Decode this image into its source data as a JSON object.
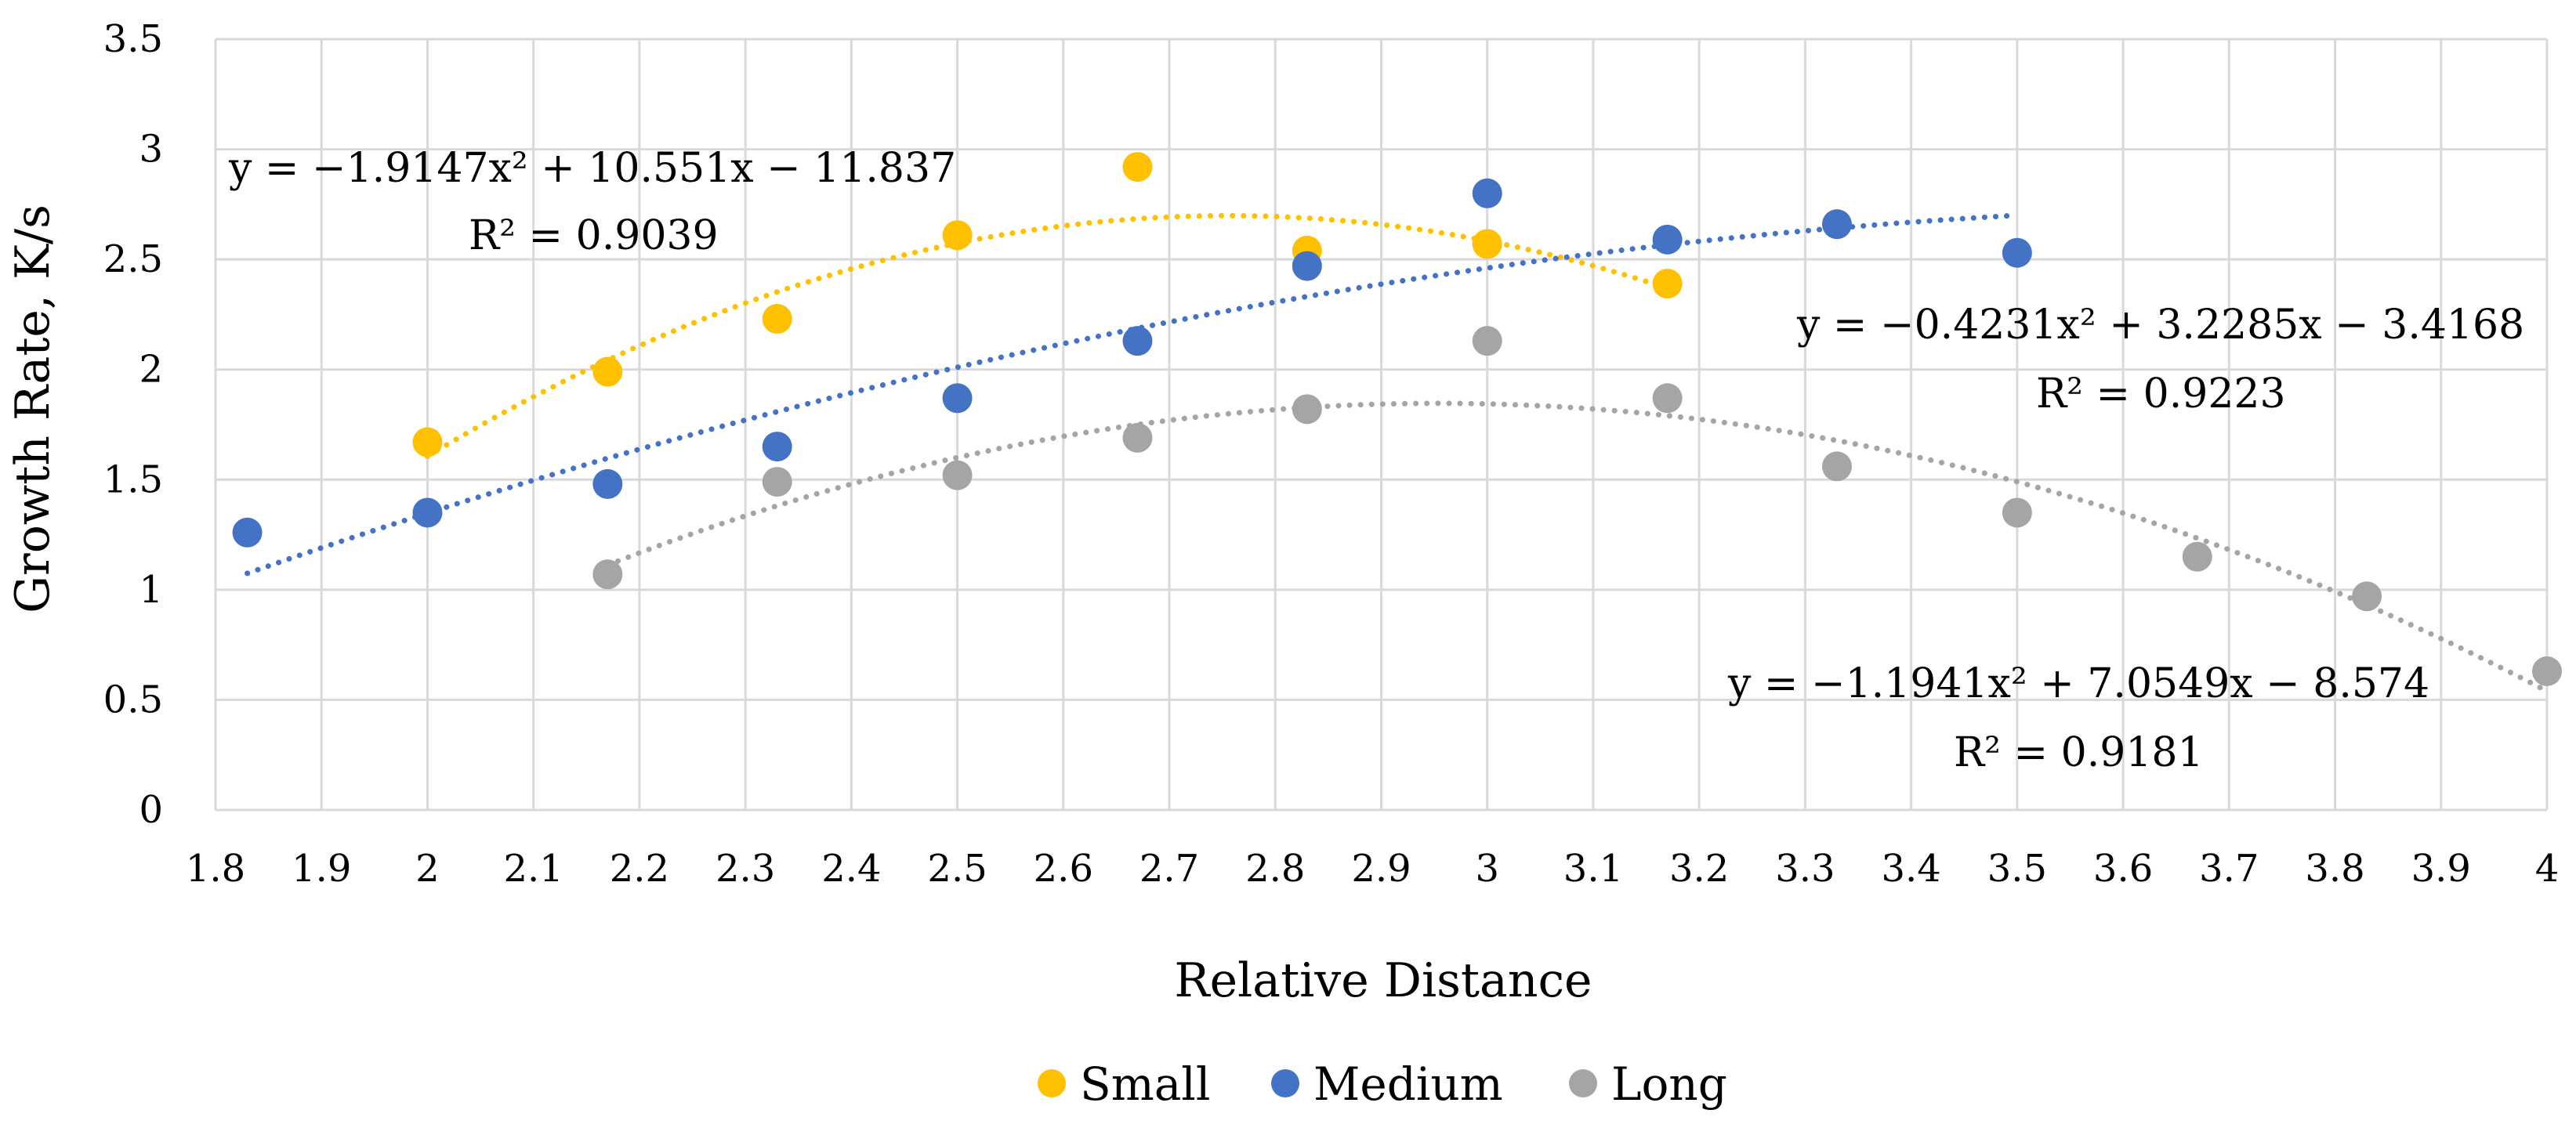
{
  "chart_data": {
    "type": "scatter",
    "xlabel": "Relative Distance",
    "ylabel": "Growth Rate, K/s",
    "xlim": [
      1.8,
      4
    ],
    "ylim": [
      0,
      3.5
    ],
    "xticks": [
      "1.8",
      "1.9",
      "2",
      "2.1",
      "2.2",
      "2.3",
      "2.4",
      "2.5",
      "2.6",
      "2.7",
      "2.8",
      "2.9",
      "3",
      "3.1",
      "3.2",
      "3.3",
      "3.4",
      "3.5",
      "3.6",
      "3.7",
      "3.8",
      "3.9",
      "4"
    ],
    "yticks": [
      "0",
      "0.5",
      "1",
      "1.5",
      "2",
      "2.5",
      "3",
      "3.5"
    ],
    "grid": true,
    "legend_position": "bottom",
    "series": [
      {
        "name": "Small",
        "color": "#FFC000",
        "points": [
          [
            2.0,
            1.67
          ],
          [
            2.17,
            1.99
          ],
          [
            2.33,
            2.23
          ],
          [
            2.5,
            2.61
          ],
          [
            2.67,
            2.92
          ],
          [
            2.83,
            2.54
          ],
          [
            3.0,
            2.57
          ],
          [
            3.17,
            2.39
          ]
        ],
        "trendline": {
          "coefficients": [
            -1.9147,
            10.551,
            -11.837
          ],
          "range": [
            2.0,
            3.17
          ],
          "equation": "y = −1.9147x² + 10.551x − 11.837",
          "r2": "R² = 0.9039"
        }
      },
      {
        "name": "Medium",
        "color": "#4472C4",
        "points": [
          [
            1.83,
            1.26
          ],
          [
            2.0,
            1.35
          ],
          [
            2.17,
            1.48
          ],
          [
            2.33,
            1.65
          ],
          [
            2.5,
            1.87
          ],
          [
            2.67,
            2.13
          ],
          [
            2.83,
            2.47
          ],
          [
            3.0,
            2.8
          ],
          [
            3.17,
            2.59
          ],
          [
            3.33,
            2.66
          ],
          [
            3.5,
            2.53
          ]
        ],
        "trendline": {
          "coefficients": [
            -0.4231,
            3.2285,
            -3.4168
          ],
          "range": [
            1.83,
            3.5
          ],
          "equation": "y = −0.4231x² + 3.2285x − 3.4168",
          "r2": "R² = 0.9223"
        }
      },
      {
        "name": "Long",
        "color": "#A5A5A5",
        "points": [
          [
            2.17,
            1.07
          ],
          [
            2.33,
            1.49
          ],
          [
            2.5,
            1.52
          ],
          [
            2.67,
            1.69
          ],
          [
            2.83,
            1.82
          ],
          [
            3.0,
            2.13
          ],
          [
            3.17,
            1.87
          ],
          [
            3.33,
            1.56
          ],
          [
            3.5,
            1.35
          ],
          [
            3.67,
            1.15
          ],
          [
            3.83,
            0.97
          ],
          [
            4.0,
            0.63
          ]
        ],
        "trendline": {
          "coefficients": [
            -1.1941,
            7.0549,
            -8.574
          ],
          "range": [
            2.17,
            4.0
          ],
          "equation": "y = −1.1941x² + 7.0549x − 8.574",
          "r2": "R² = 0.9181"
        }
      }
    ]
  }
}
